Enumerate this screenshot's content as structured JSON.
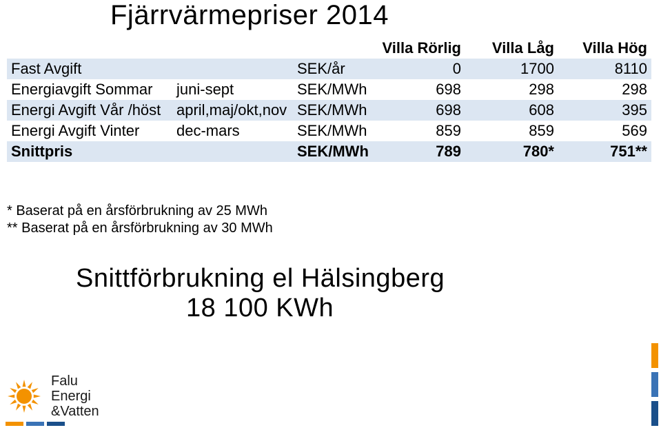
{
  "title": "Fjärrvärmepriser 2014",
  "table": {
    "columns": {
      "c1": "",
      "c2": "",
      "c3": "",
      "c4": "Villa Rörlig",
      "c5": "Villa Låg",
      "c6": "Villa Hög"
    },
    "rows": [
      {
        "label": "Fast Avgift",
        "period": "",
        "unit": "SEK/år",
        "v1": "0",
        "v2": "1700",
        "v3": "8110",
        "shaded": true
      },
      {
        "label": "Energiavgift Sommar",
        "period": "juni-sept",
        "unit": "SEK/MWh",
        "v1": "698",
        "v2": "298",
        "v3": "298",
        "shaded": false
      },
      {
        "label": "Energi Avgift Vår /höst",
        "period": "april,maj/okt,nov",
        "unit": "SEK/MWh",
        "v1": "698",
        "v2": "608",
        "v3": "395",
        "shaded": true
      },
      {
        "label": "Energi Avgift Vinter",
        "period": "dec-mars",
        "unit": "SEK/MWh",
        "v1": "859",
        "v2": "859",
        "v3": "569",
        "shaded": false
      }
    ],
    "snittpris": {
      "label": "Snittpris",
      "period": "",
      "unit": "SEK/MWh",
      "v1": "789",
      "v2": "780*",
      "v3": "751**"
    },
    "header_bg": "#dce6f2",
    "shade_bg": "#dce6f2",
    "text_color": "#000000",
    "font_size_pt": 16
  },
  "footnotes": {
    "line1": "* Baserat på en årsförbrukning av 25 MWh",
    "line2": "** Baserat på en årsförbrukning av 30 MWh"
  },
  "subhead_line1": "Snittförbrukning el Hälsingberg",
  "subhead_line2": "18 100 KWh",
  "logo": {
    "line1": "Falu",
    "line2": "Energi",
    "line3": "&Vatten",
    "sun_color": "#f39200",
    "bar_colors": [
      "#f39200",
      "#3a73b6",
      "#1a4f8a"
    ]
  },
  "side_bar_colors": [
    "#f39200",
    "#3a73b6",
    "#1a4f8a"
  ]
}
